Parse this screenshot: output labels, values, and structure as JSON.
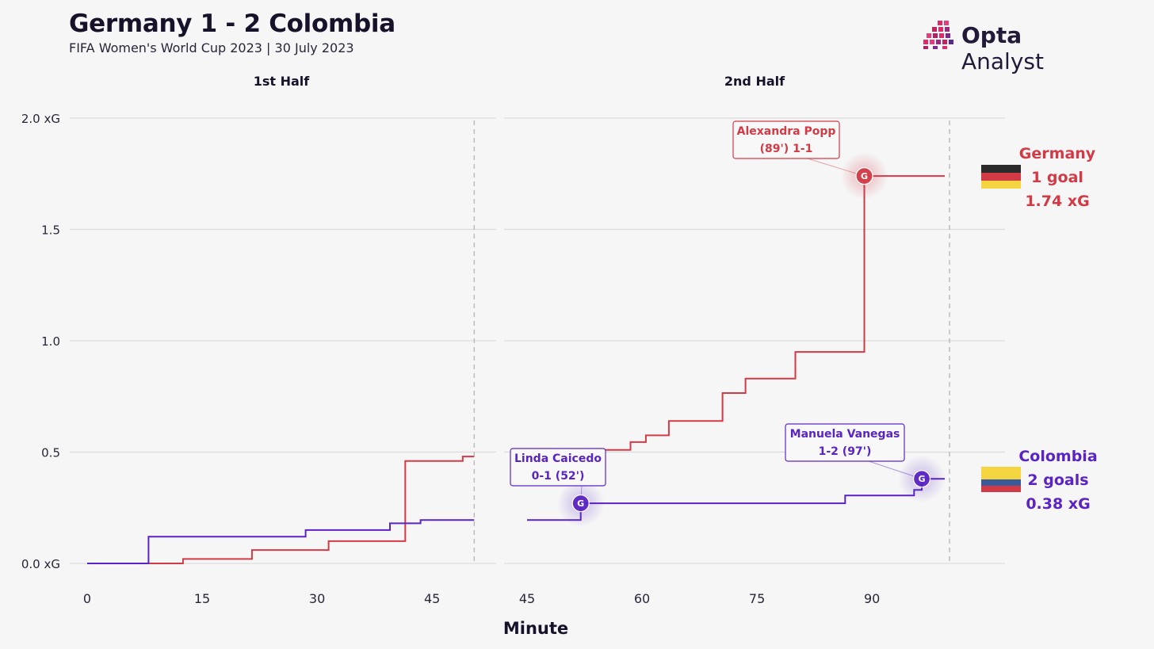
{
  "header": {
    "title": "Germany 1 - 2 Colombia",
    "subtitle": "FIFA Women's World Cup 2023 | 30 July 2023"
  },
  "logo": {
    "text_bold": "Opta",
    "text_light": "Analyst"
  },
  "colors": {
    "germany": "#d23a46",
    "colombia": "#5a24c4",
    "grid": "#dcdcdc",
    "background": "#f6f6f6"
  },
  "chart_data": {
    "type": "line",
    "step": true,
    "xlabel": "Minute",
    "ylabel": "",
    "ylim": [
      0,
      2.0
    ],
    "y_ticks": [
      {
        "value": 0.0,
        "label": "0.0 xG"
      },
      {
        "value": 0.5,
        "label": "0.5"
      },
      {
        "value": 1.0,
        "label": "1.0"
      },
      {
        "value": 1.5,
        "label": "1.5"
      },
      {
        "value": 2.0,
        "label": "2.0 xG"
      }
    ],
    "grid": true,
    "panels": [
      {
        "name": "1st Half",
        "xlim": [
          0,
          51
        ],
        "x_ticks": [
          0,
          15,
          30,
          45
        ],
        "end_marker": 50.5,
        "series": [
          {
            "name": "Germany",
            "points": [
              [
                0,
                0.0
              ],
              [
                12.5,
                0.0
              ],
              [
                12.5,
                0.02
              ],
              [
                21.5,
                0.02
              ],
              [
                21.5,
                0.06
              ],
              [
                31.5,
                0.06
              ],
              [
                31.5,
                0.1
              ],
              [
                41.5,
                0.1
              ],
              [
                41.5,
                0.46
              ],
              [
                49,
                0.46
              ],
              [
                49,
                0.48
              ],
              [
                50.5,
                0.48
              ]
            ]
          },
          {
            "name": "Colombia",
            "points": [
              [
                0,
                0.0
              ],
              [
                8,
                0.0
              ],
              [
                8,
                0.12
              ],
              [
                28.5,
                0.12
              ],
              [
                28.5,
                0.15
              ],
              [
                39.5,
                0.15
              ],
              [
                39.5,
                0.18
              ],
              [
                43.5,
                0.18
              ],
              [
                43.5,
                0.195
              ],
              [
                50.5,
                0.195
              ]
            ]
          }
        ]
      },
      {
        "name": "2nd Half",
        "xlim": [
          44,
          102.5
        ],
        "x_ticks": [
          45,
          60,
          75,
          90
        ],
        "end_marker": 99.5,
        "series": [
          {
            "name": "Germany",
            "points": [
              [
                48,
                0.51
              ],
              [
                58.5,
                0.51
              ],
              [
                58.5,
                0.545
              ],
              [
                60.5,
                0.545
              ],
              [
                60.5,
                0.575
              ],
              [
                63.5,
                0.575
              ],
              [
                63.5,
                0.64
              ],
              [
                70.5,
                0.64
              ],
              [
                70.5,
                0.765
              ],
              [
                73.5,
                0.765
              ],
              [
                73.5,
                0.83
              ],
              [
                80,
                0.83
              ],
              [
                80,
                0.95
              ],
              [
                89,
                0.95
              ],
              [
                89,
                1.74
              ],
              [
                99.5,
                1.74
              ]
            ]
          },
          {
            "name": "Colombia",
            "points": [
              [
                45,
                0.195
              ],
              [
                52,
                0.195
              ],
              [
                52,
                0.27
              ],
              [
                86.5,
                0.27
              ],
              [
                86.5,
                0.305
              ],
              [
                95.5,
                0.305
              ],
              [
                95.5,
                0.33
              ],
              [
                96.5,
                0.33
              ],
              [
                96.5,
                0.38
              ],
              [
                99.5,
                0.38
              ]
            ]
          }
        ]
      }
    ],
    "goals": [
      {
        "team": "Colombia",
        "panel": 1,
        "minute": 52,
        "xg": 0.27,
        "line1": "Linda Caicedo",
        "line2": "0-1 (52')"
      },
      {
        "team": "Germany",
        "panel": 1,
        "minute": 89,
        "xg": 1.74,
        "line1": "Alexandra Popp",
        "line2": "(89') 1-1"
      },
      {
        "team": "Colombia",
        "panel": 1,
        "minute": 96.5,
        "xg": 0.38,
        "line1": "Manuela Vanegas",
        "line2": "1-2 (97')"
      }
    ],
    "goal_marker": "G",
    "team_labels": [
      {
        "team": "Germany",
        "name": "Germany",
        "goals": "1 goal",
        "xg": "1.74 xG"
      },
      {
        "team": "Colombia",
        "name": "Colombia",
        "goals": "2 goals",
        "xg": "0.38 xG"
      }
    ],
    "flags": {
      "germany": [
        "#2a2a2a",
        "#d23a46",
        "#f5d442"
      ],
      "colombia": [
        "#f5d442",
        "#3a5a9a",
        "#d23a46"
      ]
    }
  }
}
